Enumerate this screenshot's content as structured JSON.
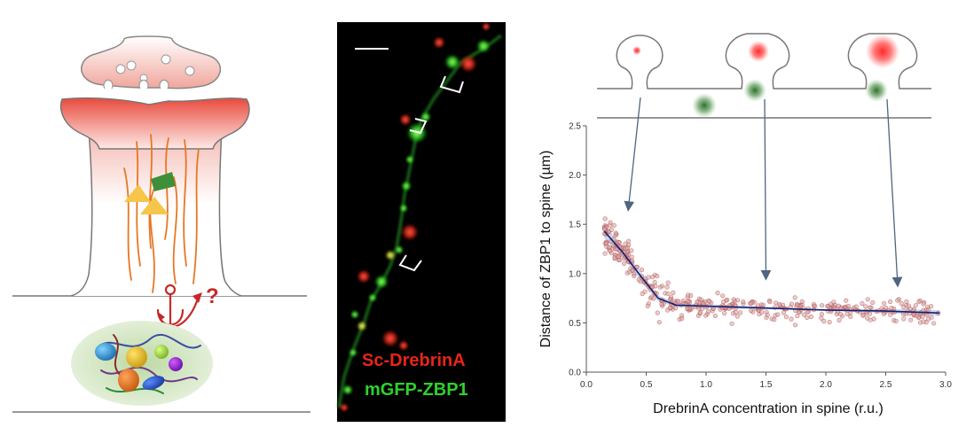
{
  "colors": {
    "red": "#e8241a",
    "green": "#2fd12c",
    "orange": "#e87722",
    "yellow": "#f6c54a",
    "dark_green_block": "#3f8f3a",
    "spine_red": "#e8433a",
    "anchor_red": "#c62828",
    "curve_navy": "#14206e",
    "point_red": "#b44a4a",
    "arrow_blue": "#4f6580",
    "outline_gray": "#777777"
  },
  "icons": {
    "question_mark": "?"
  },
  "micrograph": {
    "label_red": "Sc-DrebrinA",
    "label_green": "mGFP-ZBP1",
    "has_scale_bar": true
  },
  "chart_data": {
    "type": "scatter",
    "xlabel": "DrebrinA concentration in spine (r.u.)",
    "ylabel": "Distance of ZBP1 to spine (µm)",
    "xlim": [
      0.0,
      3.0
    ],
    "ylim": [
      0.0,
      2.5
    ],
    "x_ticks": [
      "0.0",
      "0.5",
      "1.0",
      "1.5",
      "2.0",
      "2.5",
      "3.0"
    ],
    "y_ticks": [
      "0.0",
      "0.5",
      "1.0",
      "1.5",
      "2.0",
      "2.5"
    ],
    "grid": false,
    "trend_line": {
      "x": [
        0.15,
        0.3,
        0.45,
        0.6,
        0.75,
        1.0,
        1.5,
        2.0,
        2.5,
        2.95
      ],
      "y": [
        1.43,
        1.22,
        0.98,
        0.75,
        0.68,
        0.67,
        0.65,
        0.63,
        0.62,
        0.6
      ]
    },
    "confidence_band": {
      "x": [
        0.15,
        0.3,
        0.45,
        0.6,
        0.75,
        1.0,
        1.5,
        2.0,
        2.5,
        2.95
      ],
      "lower": [
        1.36,
        1.17,
        0.94,
        0.72,
        0.66,
        0.65,
        0.64,
        0.62,
        0.6,
        0.57
      ],
      "upper": [
        1.5,
        1.27,
        1.02,
        0.78,
        0.7,
        0.69,
        0.66,
        0.64,
        0.64,
        0.63
      ]
    },
    "scatter_note": "dense cloud of roughly 400 points following the trend line with ~0.1 µm spread",
    "schematic_arrows": [
      {
        "x": 0.35,
        "y": 1.65
      },
      {
        "x": 1.5,
        "y": 0.95
      },
      {
        "x": 2.6,
        "y": 0.88
      }
    ]
  }
}
